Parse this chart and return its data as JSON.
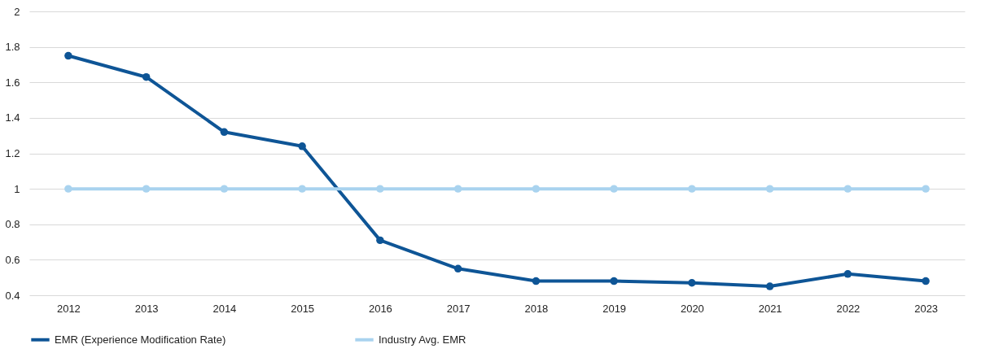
{
  "chart_data": {
    "type": "line",
    "categories": [
      "2012",
      "2013",
      "2014",
      "2015",
      "2016",
      "2017",
      "2018",
      "2019",
      "2020",
      "2021",
      "2022",
      "2023"
    ],
    "series": [
      {
        "name": "EMR (Experience Modification Rate)",
        "color": "#0e5596",
        "values": [
          1.75,
          1.63,
          1.32,
          1.24,
          0.71,
          0.55,
          0.48,
          0.48,
          0.47,
          0.45,
          0.52,
          0.48
        ]
      },
      {
        "name": "Industry Avg. EMR",
        "color": "#a9d3ef",
        "values": [
          1,
          1,
          1,
          1,
          1,
          1,
          1,
          1,
          1,
          1,
          1,
          1
        ]
      }
    ],
    "ylim": [
      0.4,
      2
    ],
    "yticks": [
      0.4,
      0.6,
      0.8,
      1,
      1.2,
      1.4,
      1.6,
      1.8,
      2
    ],
    "grid": "y",
    "legend": "bottom",
    "marker": "circle",
    "line_style": "solid"
  }
}
